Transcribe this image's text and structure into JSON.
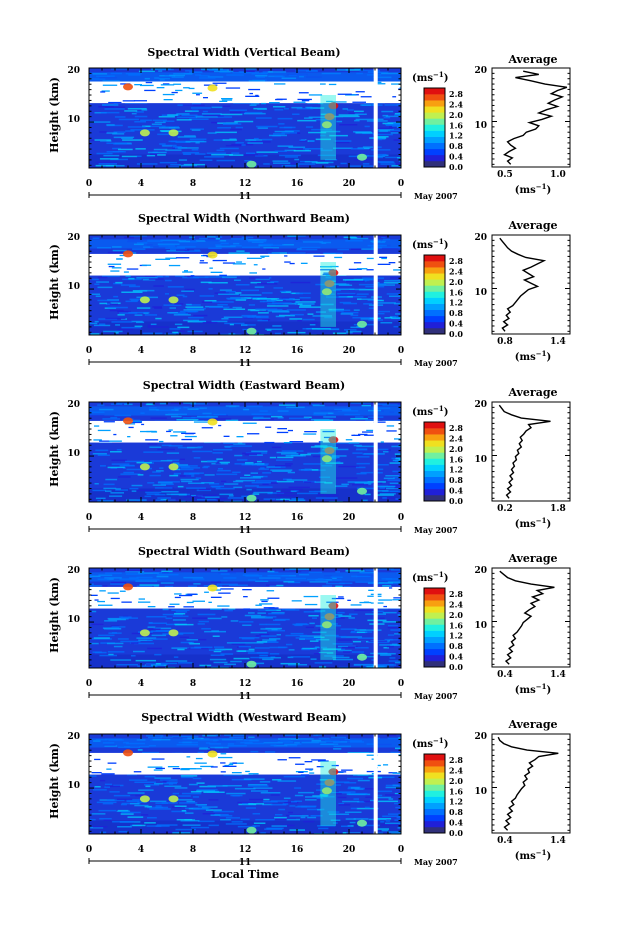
{
  "colorbar": {
    "unit_label": "(ms",
    "unit_exp": "−1",
    "unit_close": ")",
    "ticks": [
      "0.0",
      "0.4",
      "0.8",
      "1.2",
      "1.6",
      "2.0",
      "2.4",
      "2.8"
    ],
    "colors": [
      "#30307a",
      "#2020d8",
      "#0040ff",
      "#0070ff",
      "#00a0ff",
      "#00d0ff",
      "#20f0e0",
      "#70f0a0",
      "#c0f050",
      "#f0e020",
      "#f8a010",
      "#f05010",
      "#e01010"
    ]
  },
  "date_label": "May 2007",
  "day_label": "11",
  "xlabel_bottom": "Local Time",
  "x_ticks": [
    "0",
    "4",
    "8",
    "12",
    "16",
    "20",
    "0"
  ],
  "y_ticks": [
    "20",
    "10"
  ],
  "ylabel": "Height (km)",
  "avg_title": "Average",
  "avg_unit": "(ms",
  "avg_unit_exp": "−1",
  "avg_unit_close": ")",
  "chart_data": [
    {
      "type": "heatmap",
      "title": "Spectral Width (Vertical Beam)",
      "xlabel": "",
      "ylabel": "Height (km)",
      "xlim": [
        0,
        24
      ],
      "ylim": [
        1.5,
        20
      ],
      "zlim": [
        0.0,
        2.8
      ],
      "avg_profile": {
        "xlim": [
          0.5,
          1.0
        ],
        "xticks": [
          "0.5",
          "1.0"
        ],
        "x": [
          0.62,
          0.6,
          0.63,
          0.58,
          0.61,
          0.65,
          0.62,
          0.6,
          0.64,
          0.7,
          0.72,
          0.78,
          0.8,
          0.74,
          0.82,
          0.88,
          0.8,
          0.85,
          0.92,
          0.86,
          0.9,
          0.95,
          0.88,
          0.92,
          0.98,
          0.84,
          0.75,
          0.65,
          0.8,
          0.7
        ],
        "y": [
          2,
          2.6,
          3.2,
          3.8,
          4.4,
          5,
          5.6,
          6.2,
          6.8,
          7.4,
          8,
          8.6,
          9.2,
          9.8,
          10.4,
          11,
          11.6,
          12.2,
          12.8,
          13.4,
          14,
          14.6,
          15.2,
          15.8,
          16.4,
          17,
          17.6,
          18.2,
          18.8,
          19.4
        ]
      }
    },
    {
      "type": "heatmap",
      "title": "Spectral Width (Northward Beam)",
      "xlabel": "",
      "ylabel": "Height (km)",
      "xlim": [
        0,
        24
      ],
      "ylim": [
        1.5,
        20
      ],
      "zlim": [
        0.0,
        2.8
      ],
      "avg_profile": {
        "xlim": [
          0.8,
          1.4
        ],
        "xticks": [
          "0.8",
          "1.4"
        ],
        "x": [
          0.9,
          0.88,
          0.92,
          0.89,
          0.93,
          0.91,
          0.94,
          0.92,
          0.96,
          0.98,
          1.0,
          1.02,
          1.05,
          1.08,
          1.15,
          1.1,
          1.05,
          1.12,
          1.08,
          1.04,
          1.1,
          1.15,
          1.2,
          1.06,
          1.0,
          0.95,
          0.92,
          0.9,
          0.88,
          0.86
        ],
        "y": [
          2,
          2.6,
          3.2,
          3.8,
          4.4,
          5,
          5.6,
          6.2,
          6.8,
          7.4,
          8,
          8.6,
          9.2,
          9.8,
          10.4,
          11,
          11.6,
          12.2,
          12.8,
          13.4,
          14,
          14.6,
          15.2,
          15.8,
          16.4,
          17,
          17.6,
          18.2,
          18.8,
          19.4
        ]
      }
    },
    {
      "type": "heatmap",
      "title": "Spectral Width (Eastward Beam)",
      "xlabel": "",
      "ylabel": "Height (km)",
      "xlim": [
        0,
        24
      ],
      "ylim": [
        1.5,
        20
      ],
      "zlim": [
        0.0,
        2.8
      ],
      "avg_profile": {
        "xlim": [
          0.2,
          1.8
        ],
        "xticks": [
          "0.2",
          "1.8"
        ],
        "x": [
          0.55,
          0.5,
          0.58,
          0.52,
          0.6,
          0.55,
          0.62,
          0.57,
          0.64,
          0.6,
          0.66,
          0.63,
          0.7,
          0.68,
          0.75,
          0.72,
          0.8,
          0.76,
          0.82,
          0.78,
          0.85,
          0.9,
          1.0,
          0.95,
          1.4,
          0.8,
          0.6,
          0.45,
          0.4,
          0.35
        ],
        "y": [
          2,
          2.6,
          3.2,
          3.8,
          4.4,
          5,
          5.6,
          6.2,
          6.8,
          7.4,
          8,
          8.6,
          9.2,
          9.8,
          10.4,
          11,
          11.6,
          12.2,
          12.8,
          13.4,
          14,
          14.6,
          15.2,
          15.8,
          16.4,
          17,
          17.6,
          18.2,
          18.8,
          19.4
        ]
      }
    },
    {
      "type": "heatmap",
      "title": "Spectral Width (Southward Beam)",
      "xlabel": "",
      "ylabel": "Height (km)",
      "xlim": [
        0,
        24
      ],
      "ylim": [
        1.5,
        20
      ],
      "zlim": [
        0.0,
        2.8
      ],
      "avg_profile": {
        "xlim": [
          0.4,
          1.4
        ],
        "xticks": [
          "0.4",
          "1.4"
        ],
        "x": [
          0.62,
          0.58,
          0.64,
          0.6,
          0.66,
          0.62,
          0.68,
          0.65,
          0.7,
          0.67,
          0.72,
          0.75,
          0.78,
          0.8,
          0.85,
          0.9,
          0.82,
          0.88,
          0.95,
          0.9,
          1.0,
          0.92,
          1.05,
          0.98,
          1.2,
          0.9,
          0.7,
          0.6,
          0.55,
          0.5
        ],
        "y": [
          2,
          2.6,
          3.2,
          3.8,
          4.4,
          5,
          5.6,
          6.2,
          6.8,
          7.4,
          8,
          8.6,
          9.2,
          9.8,
          10.4,
          11,
          11.6,
          12.2,
          12.8,
          13.4,
          14,
          14.6,
          15.2,
          15.8,
          16.4,
          17,
          17.6,
          18.2,
          18.8,
          19.4
        ]
      }
    },
    {
      "type": "heatmap",
      "title": "Spectral Width (Westward Beam)",
      "xlabel": "Local Time",
      "ylabel": "Height (km)",
      "xlim": [
        0,
        24
      ],
      "ylim": [
        1.5,
        20
      ],
      "zlim": [
        0.0,
        2.8
      ],
      "avg_profile": {
        "xlim": [
          0.4,
          1.4
        ],
        "xticks": [
          "0.4",
          "1.4"
        ],
        "x": [
          0.6,
          0.56,
          0.62,
          0.58,
          0.64,
          0.6,
          0.66,
          0.62,
          0.68,
          0.65,
          0.7,
          0.72,
          0.75,
          0.78,
          0.82,
          0.8,
          0.85,
          0.82,
          0.88,
          0.86,
          0.92,
          0.88,
          0.95,
          1.0,
          1.25,
          0.85,
          0.65,
          0.55,
          0.5,
          0.48
        ],
        "y": [
          2,
          2.6,
          3.2,
          3.8,
          4.4,
          5,
          5.6,
          6.2,
          6.8,
          7.4,
          8,
          8.6,
          9.2,
          9.8,
          10.4,
          11,
          11.6,
          12.2,
          12.8,
          13.4,
          14,
          14.6,
          15.2,
          15.8,
          16.4,
          17,
          17.6,
          18.2,
          18.8,
          19.4
        ]
      }
    }
  ]
}
